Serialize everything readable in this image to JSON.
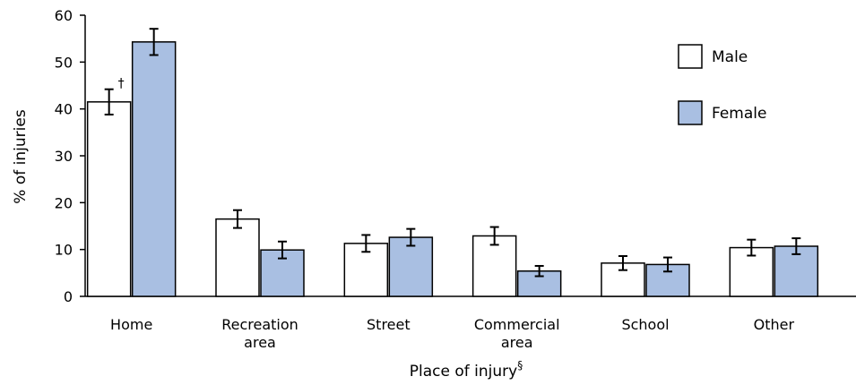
{
  "chart_data": {
    "type": "bar",
    "xlabel": "Place of injury",
    "xlabel_superscript": "§",
    "ylabel": "% of injuries",
    "ylim": [
      0,
      60
    ],
    "yticks": [
      0,
      10,
      20,
      30,
      40,
      50,
      60
    ],
    "categories": [
      [
        "Home"
      ],
      [
        "Recreation",
        "area"
      ],
      [
        "Street"
      ],
      [
        "Commercial",
        "area"
      ],
      [
        "School"
      ],
      [
        "Other"
      ]
    ],
    "series": [
      {
        "name": "Male",
        "color": "#ffffff",
        "values": [
          41.5,
          16.5,
          11.3,
          12.9,
          7.1,
          10.4
        ],
        "error": [
          2.7,
          1.9,
          1.8,
          1.9,
          1.5,
          1.7
        ]
      },
      {
        "name": "Female",
        "color": "#a9bfe2",
        "values": [
          54.3,
          9.9,
          12.6,
          5.4,
          6.8,
          10.7
        ],
        "error": [
          2.8,
          1.8,
          1.8,
          1.1,
          1.5,
          1.7
        ]
      }
    ],
    "legend_position": "top-right",
    "annotations": [
      {
        "text": "†",
        "series": 0,
        "category": 0
      }
    ]
  }
}
